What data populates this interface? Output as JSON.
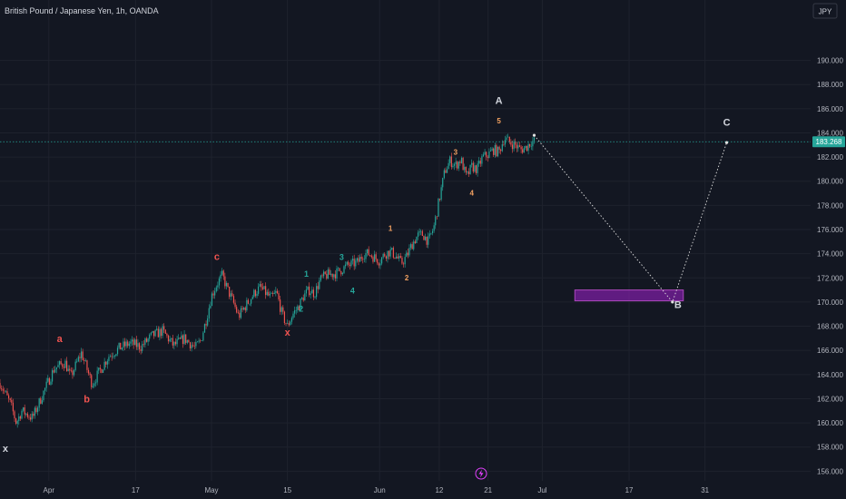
{
  "header": {
    "title": "British Pound / Japanese Yen, 1h, OANDA"
  },
  "currency_button": {
    "label": "JPY"
  },
  "colors": {
    "background": "#131722",
    "candle_up": "#26a69a",
    "candle_down": "#ef5350",
    "price_line": "#26a69a",
    "price_badge": "#26a69a",
    "projection": "#e0e0e0",
    "target_zone": "#7b1fa2",
    "label_white": "#d1d4dc",
    "label_red": "#ef5350",
    "label_green": "#26a69a",
    "label_orange": "#f4a261"
  },
  "chart_data": {
    "type": "candlestick",
    "title": "British Pound / Japanese Yen, 1h, OANDA",
    "y_unit": "JPY",
    "ylim": [
      155.2,
      195.0
    ],
    "y_ticks": [
      "190.000",
      "188.000",
      "186.000",
      "184.000",
      "182.000",
      "180.000",
      "178.000",
      "176.000",
      "174.000",
      "172.000",
      "170.000",
      "168.000",
      "166.000",
      "164.000",
      "162.000",
      "160.000",
      "158.000",
      "156.000"
    ],
    "x_ticks": [
      {
        "label": "Apr",
        "day": 1
      },
      {
        "label": "17",
        "day": 17
      },
      {
        "label": "May",
        "day": 31
      },
      {
        "label": "15",
        "day": 45
      },
      {
        "label": "Jun",
        "day": 62
      },
      {
        "label": "12",
        "day": 73
      },
      {
        "label": "21",
        "day": 82
      },
      {
        "label": "Jul",
        "day": 92
      },
      {
        "label": "17",
        "day": 108
      },
      {
        "label": "31",
        "day": 122
      }
    ],
    "x_domain": [
      -8,
      148
    ],
    "current_price": {
      "label": "183.268",
      "value": 183.268
    },
    "price_path": [
      [
        -8,
        163.3
      ],
      [
        -6,
        161.5
      ],
      [
        -5,
        160.0
      ],
      [
        -4,
        161.0
      ],
      [
        -2,
        160.4
      ],
      [
        0,
        162.5
      ],
      [
        2,
        164.5
      ],
      [
        4,
        165.0
      ],
      [
        5,
        163.8
      ],
      [
        6,
        164.8
      ],
      [
        7,
        165.8
      ],
      [
        8,
        164.5
      ],
      [
        9,
        163.2
      ],
      [
        10,
        164.0
      ],
      [
        12,
        165.5
      ],
      [
        14,
        166.2
      ],
      [
        16,
        166.6
      ],
      [
        18,
        166.3
      ],
      [
        20,
        167.2
      ],
      [
        22,
        167.6
      ],
      [
        24,
        166.4
      ],
      [
        26,
        167.0
      ],
      [
        28,
        166.2
      ],
      [
        29,
        166.8
      ],
      [
        30,
        168.5
      ],
      [
        31,
        170.5
      ],
      [
        32,
        171.5
      ],
      [
        33,
        172.2
      ],
      [
        34,
        171.0
      ],
      [
        35,
        170.0
      ],
      [
        36,
        168.8
      ],
      [
        37,
        169.5
      ],
      [
        39,
        170.8
      ],
      [
        40,
        171.2
      ],
      [
        42,
        170.3
      ],
      [
        43,
        170.8
      ],
      [
        44,
        169.0
      ],
      [
        45,
        168.0
      ],
      [
        46,
        169.0
      ],
      [
        47,
        169.6
      ],
      [
        48,
        170.5
      ],
      [
        49,
        171.0
      ],
      [
        50,
        170.7
      ],
      [
        51,
        171.8
      ],
      [
        52,
        172.2
      ],
      [
        54,
        172.4
      ],
      [
        56,
        173.0
      ],
      [
        58,
        173.3
      ],
      [
        59,
        174.0
      ],
      [
        60,
        174.0
      ],
      [
        61,
        173.7
      ],
      [
        62,
        173.4
      ],
      [
        63,
        174.0
      ],
      [
        64,
        174.2
      ],
      [
        65,
        173.8
      ],
      [
        66,
        173.2
      ],
      [
        67,
        173.8
      ],
      [
        68,
        174.8
      ],
      [
        69,
        175.5
      ],
      [
        70,
        175.6
      ],
      [
        71,
        175.0
      ],
      [
        72,
        176.2
      ],
      [
        73,
        178.5
      ],
      [
        74,
        180.8
      ],
      [
        75,
        181.7
      ],
      [
        76,
        181.3
      ],
      [
        77,
        181.8
      ],
      [
        78,
        180.3
      ],
      [
        79,
        181.2
      ],
      [
        80,
        181.0
      ],
      [
        81,
        182.0
      ],
      [
        82,
        182.2
      ],
      [
        83,
        182.6
      ],
      [
        84,
        182.4
      ],
      [
        85,
        183.6
      ],
      [
        86,
        183.2
      ],
      [
        87,
        183.0
      ],
      [
        88,
        182.6
      ],
      [
        89,
        182.8
      ],
      [
        90,
        183.3
      ],
      [
        90.5,
        183.3
      ]
    ],
    "projection": {
      "points": [
        [
          90.5,
          183.8
        ],
        [
          116,
          170.0
        ],
        [
          126,
          183.2
        ]
      ],
      "zone": {
        "x_from": 98,
        "x_to": 118,
        "y_from": 170.1,
        "y_to": 171.0
      }
    },
    "wave_labels": [
      {
        "text": "x",
        "day": -7,
        "price": 157.6,
        "color": "label_white",
        "size": 11
      },
      {
        "text": "a",
        "day": 3,
        "price": 166.7,
        "color": "label_red",
        "size": 11
      },
      {
        "text": "b",
        "day": 8,
        "price": 161.7,
        "color": "label_red",
        "size": 11
      },
      {
        "text": "c",
        "day": 32,
        "price": 173.5,
        "color": "label_red",
        "size": 11
      },
      {
        "text": "x",
        "day": 45,
        "price": 167.2,
        "color": "label_red",
        "size": 11
      },
      {
        "text": "1",
        "day": 48.5,
        "price": 172.1,
        "color": "label_green",
        "size": 9
      },
      {
        "text": "2",
        "day": 47.5,
        "price": 169.2,
        "color": "label_green",
        "size": 9
      },
      {
        "text": "3",
        "day": 55,
        "price": 173.5,
        "color": "label_green",
        "size": 9
      },
      {
        "text": "4",
        "day": 57,
        "price": 170.7,
        "color": "label_green",
        "size": 9
      },
      {
        "text": "1",
        "day": 64,
        "price": 175.9,
        "color": "label_orange",
        "size": 8
      },
      {
        "text": "2",
        "day": 67,
        "price": 171.8,
        "color": "label_orange",
        "size": 8
      },
      {
        "text": "3",
        "day": 76,
        "price": 182.2,
        "color": "label_orange",
        "size": 8
      },
      {
        "text": "4",
        "day": 79,
        "price": 178.8,
        "color": "label_orange",
        "size": 8
      },
      {
        "text": "5",
        "day": 84,
        "price": 184.8,
        "color": "label_orange",
        "size": 8
      },
      {
        "text": "A",
        "day": 84,
        "price": 186.4,
        "color": "label_white",
        "size": 11
      },
      {
        "text": "B",
        "day": 117,
        "price": 169.5,
        "color": "label_white",
        "size": 11
      },
      {
        "text": "C",
        "day": 126,
        "price": 184.6,
        "color": "label_white",
        "size": 11
      }
    ]
  }
}
